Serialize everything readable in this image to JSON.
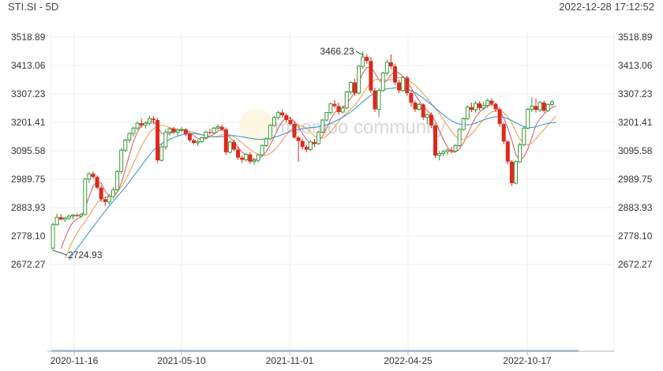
{
  "header": {
    "symbol": "STI.SI - 5D",
    "timestamp": "2022-12-28 17:12:52"
  },
  "watermark": "moomoo community",
  "colors": {
    "up": "#3a9a3a",
    "down": "#e0281b",
    "ma_short": "#e0606e",
    "ma_mid": "#f0a050",
    "ma_long": "#3a9ad9",
    "grid": "#efefef",
    "axis": "#b5b5b5"
  },
  "chart_data": {
    "type": "candlestick",
    "title": "",
    "xlabel": "",
    "ylabel": "",
    "y_ticks": [
      3518.89,
      3413.06,
      3307.23,
      3201.41,
      3095.58,
      2989.75,
      2883.93,
      2778.1,
      2672.27
    ],
    "x_ticks": [
      "2020-11-16",
      "2021-05-10",
      "2021-11-01",
      "2022-04-25",
      "2022-10-17"
    ],
    "annotations": [
      {
        "text": "3466.23",
        "value": 3466.23,
        "candle_index": 78
      },
      {
        "text": "2724.93",
        "value": 2724.93,
        "candle_index": 0
      }
    ],
    "grid": true,
    "candles_ohlc": [
      [
        2733,
        2829,
        2725,
        2820
      ],
      [
        2820,
        2862,
        2818,
        2848
      ],
      [
        2848,
        2860,
        2836,
        2840
      ],
      [
        2840,
        2850,
        2830,
        2845
      ],
      [
        2845,
        2858,
        2838,
        2852
      ],
      [
        2852,
        2860,
        2840,
        2856
      ],
      [
        2856,
        2862,
        2850,
        2852
      ],
      [
        2852,
        2864,
        2845,
        2858
      ],
      [
        2858,
        2995,
        2855,
        2990
      ],
      [
        2990,
        3015,
        2975,
        3010
      ],
      [
        3010,
        3020,
        2990,
        2998
      ],
      [
        2998,
        3005,
        2952,
        2958
      ],
      [
        2958,
        2965,
        2905,
        2915
      ],
      [
        2915,
        2925,
        2890,
        2905
      ],
      [
        2905,
        2935,
        2895,
        2925
      ],
      [
        2925,
        2960,
        2915,
        2950
      ],
      [
        2950,
        3025,
        2945,
        3018
      ],
      [
        3018,
        3105,
        3010,
        3098
      ],
      [
        3098,
        3140,
        3090,
        3135
      ],
      [
        3135,
        3165,
        3125,
        3160
      ],
      [
        3160,
        3185,
        3148,
        3180
      ],
      [
        3180,
        3205,
        3172,
        3198
      ],
      [
        3198,
        3215,
        3182,
        3190
      ],
      [
        3190,
        3205,
        3178,
        3198
      ],
      [
        3198,
        3225,
        3190,
        3215
      ],
      [
        3215,
        3225,
        3195,
        3210
      ],
      [
        3210,
        3218,
        3050,
        3060
      ],
      [
        3060,
        3120,
        3055,
        3110
      ],
      [
        3110,
        3175,
        3100,
        3165
      ],
      [
        3165,
        3182,
        3150,
        3178
      ],
      [
        3178,
        3185,
        3158,
        3165
      ],
      [
        3165,
        3178,
        3150,
        3172
      ],
      [
        3172,
        3185,
        3165,
        3175
      ],
      [
        3175,
        3180,
        3150,
        3158
      ],
      [
        3158,
        3162,
        3128,
        3135
      ],
      [
        3135,
        3140,
        3118,
        3125
      ],
      [
        3125,
        3138,
        3112,
        3130
      ],
      [
        3130,
        3148,
        3125,
        3144
      ],
      [
        3144,
        3170,
        3140,
        3165
      ],
      [
        3165,
        3178,
        3155,
        3162
      ],
      [
        3162,
        3185,
        3158,
        3180
      ],
      [
        3180,
        3195,
        3172,
        3185
      ],
      [
        3185,
        3192,
        3170,
        3175
      ],
      [
        3175,
        3182,
        3080,
        3090
      ],
      [
        3090,
        3135,
        3085,
        3128
      ],
      [
        3128,
        3138,
        3095,
        3100
      ],
      [
        3100,
        3110,
        3062,
        3070
      ],
      [
        3070,
        3078,
        3050,
        3062
      ],
      [
        3062,
        3088,
        3055,
        3082
      ],
      [
        3082,
        3090,
        3045,
        3055
      ],
      [
        3055,
        3070,
        3042,
        3060
      ],
      [
        3060,
        3085,
        3052,
        3080
      ],
      [
        3080,
        3120,
        3075,
        3115
      ],
      [
        3115,
        3145,
        3110,
        3140
      ],
      [
        3140,
        3195,
        3135,
        3190
      ],
      [
        3190,
        3225,
        3185,
        3220
      ],
      [
        3220,
        3245,
        3210,
        3238
      ],
      [
        3238,
        3250,
        3220,
        3228
      ],
      [
        3228,
        3235,
        3200,
        3210
      ],
      [
        3210,
        3222,
        3190,
        3195
      ],
      [
        3195,
        3205,
        3140,
        3145
      ],
      [
        3145,
        3152,
        3055,
        3132
      ],
      [
        3132,
        3140,
        3100,
        3110
      ],
      [
        3110,
        3118,
        3090,
        3100
      ],
      [
        3100,
        3135,
        3095,
        3128
      ],
      [
        3128,
        3140,
        3110,
        3122
      ],
      [
        3122,
        3170,
        3118,
        3165
      ],
      [
        3165,
        3215,
        3160,
        3210
      ],
      [
        3210,
        3240,
        3205,
        3238
      ],
      [
        3238,
        3275,
        3232,
        3270
      ],
      [
        3270,
        3285,
        3255,
        3262
      ],
      [
        3262,
        3275,
        3230,
        3240
      ],
      [
        3240,
        3265,
        3235,
        3255
      ],
      [
        3255,
        3320,
        3250,
        3315
      ],
      [
        3315,
        3355,
        3305,
        3350
      ],
      [
        3350,
        3365,
        3300,
        3310
      ],
      [
        3310,
        3415,
        3305,
        3410
      ],
      [
        3410,
        3466,
        3400,
        3445
      ],
      [
        3445,
        3455,
        3420,
        3430
      ],
      [
        3430,
        3445,
        3310,
        3320
      ],
      [
        3320,
        3330,
        3240,
        3250
      ],
      [
        3250,
        3330,
        3220,
        3320
      ],
      [
        3320,
        3390,
        3315,
        3385
      ],
      [
        3385,
        3435,
        3375,
        3425
      ],
      [
        3425,
        3455,
        3400,
        3410
      ],
      [
        3410,
        3420,
        3340,
        3350
      ],
      [
        3350,
        3360,
        3310,
        3320
      ],
      [
        3320,
        3375,
        3315,
        3368
      ],
      [
        3368,
        3375,
        3300,
        3310
      ],
      [
        3310,
        3318,
        3260,
        3275
      ],
      [
        3275,
        3282,
        3240,
        3250
      ],
      [
        3250,
        3275,
        3245,
        3268
      ],
      [
        3268,
        3272,
        3210,
        3220
      ],
      [
        3220,
        3235,
        3195,
        3230
      ],
      [
        3230,
        3238,
        3180,
        3190
      ],
      [
        3190,
        3195,
        3070,
        3078
      ],
      [
        3078,
        3095,
        3060,
        3085
      ],
      [
        3085,
        3100,
        3075,
        3092
      ],
      [
        3092,
        3105,
        3080,
        3098
      ],
      [
        3098,
        3110,
        3086,
        3094
      ],
      [
        3094,
        3120,
        3090,
        3115
      ],
      [
        3115,
        3180,
        3110,
        3175
      ],
      [
        3175,
        3220,
        3170,
        3215
      ],
      [
        3215,
        3265,
        3210,
        3258
      ],
      [
        3258,
        3275,
        3240,
        3248
      ],
      [
        3248,
        3280,
        3238,
        3272
      ],
      [
        3272,
        3280,
        3245,
        3255
      ],
      [
        3255,
        3278,
        3248,
        3265
      ],
      [
        3265,
        3290,
        3255,
        3282
      ],
      [
        3282,
        3290,
        3262,
        3270
      ],
      [
        3270,
        3275,
        3240,
        3250
      ],
      [
        3250,
        3258,
        3185,
        3195
      ],
      [
        3195,
        3200,
        3120,
        3130
      ],
      [
        3130,
        3135,
        3045,
        3055
      ],
      [
        3055,
        3060,
        2965,
        2975
      ],
      [
        2975,
        3060,
        2970,
        3055
      ],
      [
        3055,
        3125,
        3050,
        3118
      ],
      [
        3118,
        3185,
        3112,
        3180
      ],
      [
        3180,
        3255,
        3175,
        3250
      ],
      [
        3250,
        3295,
        3240,
        3262
      ],
      [
        3262,
        3290,
        3238,
        3248
      ],
      [
        3248,
        3282,
        3240,
        3275
      ],
      [
        3275,
        3282,
        3238,
        3245
      ],
      [
        3245,
        3272,
        3240,
        3268
      ],
      [
        3268,
        3285,
        3260,
        3278
      ]
    ],
    "series": [
      {
        "values": [
          2640,
          2680,
          2730,
          2770,
          2805,
          2830,
          2842,
          2850,
          2880,
          2925,
          2965,
          2980,
          2975,
          2945,
          2925,
          2925,
          2940,
          2975,
          3025,
          3080,
          3130,
          3165,
          3190,
          3200,
          3205,
          3205,
          3185,
          3160,
          3155,
          3160,
          3165,
          3168,
          3172,
          3170,
          3162,
          3152,
          3142,
          3138,
          3140,
          3148,
          3158,
          3168,
          3175,
          3165,
          3145,
          3128,
          3110,
          3090,
          3080,
          3070,
          3062,
          3065,
          3075,
          3092,
          3118,
          3148,
          3180,
          3205,
          3218,
          3218,
          3205,
          3185,
          3160,
          3138,
          3122,
          3120,
          3130,
          3150,
          3180,
          3212,
          3238,
          3250,
          3256,
          3270,
          3292,
          3312,
          3350,
          3385,
          3405,
          3408,
          3385,
          3360,
          3345,
          3358,
          3380,
          3392,
          3385,
          3370,
          3350,
          3330,
          3305,
          3282,
          3262,
          3245,
          3230,
          3205,
          3170,
          3138,
          3110,
          3092,
          3090,
          3102,
          3125,
          3155,
          3190,
          3220,
          3240,
          3252,
          3262,
          3268,
          3262,
          3245,
          3218,
          3180,
          3135,
          3082,
          3060,
          3072,
          3102,
          3145,
          3190,
          3215,
          3232,
          3248,
          3256,
          3262
        ]
      },
      {
        "values": [
          2605,
          2630,
          2660,
          2695,
          2730,
          2762,
          2790,
          2812,
          2832,
          2855,
          2878,
          2900,
          2915,
          2922,
          2925,
          2930,
          2942,
          2960,
          2985,
          3015,
          3048,
          3080,
          3112,
          3140,
          3162,
          3178,
          3188,
          3190,
          3188,
          3182,
          3178,
          3175,
          3172,
          3170,
          3168,
          3164,
          3160,
          3155,
          3150,
          3148,
          3148,
          3150,
          3155,
          3158,
          3155,
          3148,
          3138,
          3125,
          3112,
          3100,
          3090,
          3082,
          3078,
          3078,
          3085,
          3098,
          3115,
          3135,
          3155,
          3172,
          3185,
          3190,
          3188,
          3180,
          3165,
          3150,
          3142,
          3142,
          3150,
          3165,
          3185,
          3205,
          3222,
          3236,
          3250,
          3265,
          3285,
          3308,
          3330,
          3350,
          3360,
          3362,
          3360,
          3358,
          3360,
          3365,
          3368,
          3368,
          3362,
          3352,
          3340,
          3325,
          3308,
          3290,
          3272,
          3255,
          3235,
          3212,
          3190,
          3168,
          3150,
          3140,
          3138,
          3145,
          3158,
          3175,
          3195,
          3212,
          3228,
          3240,
          3245,
          3245,
          3238,
          3222,
          3198,
          3168,
          3140,
          3122,
          3118,
          3125,
          3140,
          3158,
          3175,
          3192,
          3208,
          3225
        ]
      },
      {
        "values": [
          2620,
          2635,
          2650,
          2668,
          2688,
          2710,
          2732,
          2752,
          2772,
          2792,
          2812,
          2832,
          2852,
          2872,
          2890,
          2908,
          2925,
          2942,
          2960,
          2980,
          3000,
          3020,
          3040,
          3060,
          3080,
          3098,
          3112,
          3122,
          3130,
          3138,
          3145,
          3150,
          3155,
          3158,
          3160,
          3160,
          3158,
          3155,
          3152,
          3150,
          3148,
          3147,
          3148,
          3150,
          3152,
          3152,
          3150,
          3148,
          3145,
          3142,
          3140,
          3138,
          3138,
          3140,
          3142,
          3146,
          3150,
          3156,
          3162,
          3168,
          3172,
          3175,
          3178,
          3180,
          3182,
          3182,
          3185,
          3188,
          3192,
          3198,
          3205,
          3212,
          3220,
          3230,
          3240,
          3252,
          3265,
          3278,
          3290,
          3302,
          3312,
          3318,
          3322,
          3326,
          3328,
          3330,
          3330,
          3328,
          3325,
          3320,
          3312,
          3302,
          3292,
          3280,
          3268,
          3255,
          3242,
          3230,
          3218,
          3208,
          3200,
          3195,
          3192,
          3192,
          3194,
          3198,
          3205,
          3210,
          3215,
          3220,
          3222,
          3222,
          3220,
          3215,
          3208,
          3200,
          3192,
          3186,
          3182,
          3182,
          3185,
          3190,
          3194,
          3198,
          3200,
          3202
        ]
      }
    ]
  }
}
